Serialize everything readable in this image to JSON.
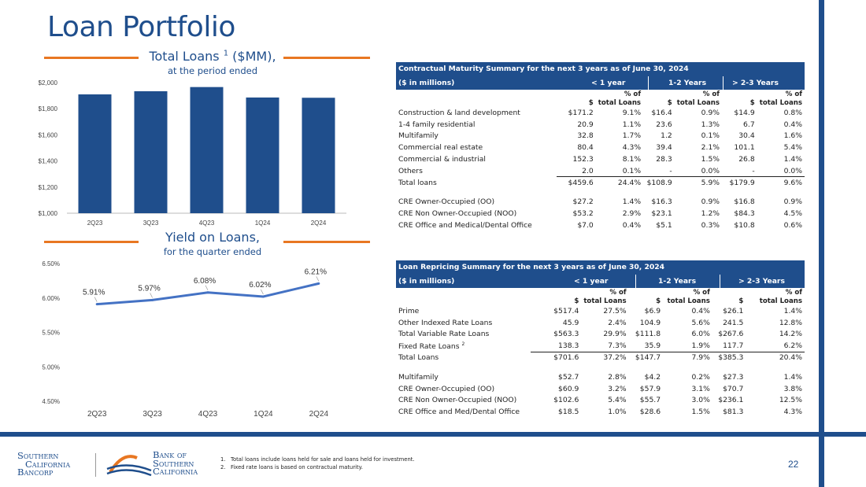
{
  "page": {
    "title": "Loan Portfolio",
    "page_number": "22",
    "footnotes": [
      "1.   Total loans include loans held for sale and loans held for investment.",
      "2.   Fixed rate loans is based on contractual maturity."
    ],
    "logos": {
      "left": [
        "Southern",
        "California",
        "Bancorp"
      ],
      "right": [
        "Bank of",
        "Southern",
        "California"
      ]
    },
    "colors": {
      "brand": "#1f4e8c",
      "accent": "#e87722",
      "bar": "#1f4e8c",
      "line": "#4472c4"
    }
  },
  "chart_data": [
    {
      "type": "bar",
      "title": "Total Loans",
      "title_superscript": "1",
      "title_suffix": "($MM),",
      "subtitle": "at the period ended",
      "categories": [
        "2Q23",
        "3Q23",
        "4Q23",
        "1Q24",
        "2Q24"
      ],
      "values": [
        1910,
        1934,
        1966,
        1886,
        1884
      ],
      "ylim": [
        1000,
        2000
      ],
      "yticks": [
        "$1,000",
        "$1,200",
        "$1,400",
        "$1,600",
        "$1,800",
        "$2,000"
      ],
      "ytick_values": [
        1000,
        1200,
        1400,
        1600,
        1800,
        2000
      ],
      "grid": false
    },
    {
      "type": "line",
      "title": "Yield on Loans,",
      "subtitle": "for the quarter ended",
      "categories": [
        "2Q23",
        "3Q23",
        "4Q23",
        "1Q24",
        "2Q24"
      ],
      "values": [
        5.91,
        5.97,
        6.08,
        6.02,
        6.21
      ],
      "data_labels": [
        "5.91%",
        "5.97%",
        "6.08%",
        "6.02%",
        "6.21%"
      ],
      "ylim": [
        4.5,
        6.5
      ],
      "yticks": [
        "4.50%",
        "5.00%",
        "5.50%",
        "6.00%",
        "6.50%"
      ],
      "ytick_values": [
        4.5,
        5.0,
        5.5,
        6.0,
        6.5
      ],
      "grid": false
    },
    {
      "type": "table",
      "title": "Contractual Maturity Summary for the next 3 years as of June 30, 2024",
      "unit_label": "($ in millions)",
      "groups": [
        "< 1 year",
        "1-2 Years",
        "> 2-3 Years"
      ],
      "subheaders": [
        "$",
        "% of total Loans"
      ],
      "rows": [
        {
          "label": "Construction & land development",
          "cells": [
            "$171.2",
            "9.1%",
            "$16.4",
            "0.9%",
            "$14.9",
            "0.8%"
          ]
        },
        {
          "label": "1-4 family residential",
          "cells": [
            "20.9",
            "1.1%",
            "23.6",
            "1.3%",
            "6.7",
            "0.4%"
          ]
        },
        {
          "label": "Multifamily",
          "cells": [
            "32.8",
            "1.7%",
            "1.2",
            "0.1%",
            "30.4",
            "1.6%"
          ]
        },
        {
          "label": "Commercial real estate",
          "cells": [
            "80.4",
            "4.3%",
            "39.4",
            "2.1%",
            "101.1",
            "5.4%"
          ]
        },
        {
          "label": "Commercial & industrial",
          "cells": [
            "152.3",
            "8.1%",
            "28.3",
            "1.5%",
            "26.8",
            "1.4%"
          ]
        },
        {
          "label": "Others",
          "cells": [
            "2.0",
            "0.1%",
            "-",
            "0.0%",
            "-",
            "0.0%"
          ]
        },
        {
          "label": "Total loans",
          "cells": [
            "$459.6",
            "24.4%",
            "$108.9",
            "5.9%",
            "$179.9",
            "9.6%"
          ]
        },
        {
          "label": "CRE Owner-Occupied (OO)",
          "cells": [
            "$27.2",
            "1.4%",
            "$16.3",
            "0.9%",
            "$16.8",
            "0.9%"
          ]
        },
        {
          "label": "CRE Non Owner-Occupied (NOO)",
          "cells": [
            "$53.2",
            "2.9%",
            "$23.1",
            "1.2%",
            "$84.3",
            "4.5%"
          ]
        },
        {
          "label": "CRE Office and Medical/Dental Office",
          "cells": [
            "$7.0",
            "0.4%",
            "$5.1",
            "0.3%",
            "$10.8",
            "0.6%"
          ]
        }
      ]
    },
    {
      "type": "table",
      "title": "Loan Repricing Summary for the next 3 years as of June 30, 2024",
      "unit_label": "($ in millions)",
      "groups": [
        "< 1 year",
        "1-2 Years",
        "> 2-3 Years"
      ],
      "subheaders": [
        "$",
        "% of total Loans"
      ],
      "rows": [
        {
          "label": "Prime",
          "cells": [
            "$517.4",
            "27.5%",
            "$6.9",
            "0.4%",
            "$26.1",
            "1.4%"
          ]
        },
        {
          "label": "Other Indexed Rate Loans",
          "cells": [
            "45.9",
            "2.4%",
            "104.9",
            "5.6%",
            "241.5",
            "12.8%"
          ]
        },
        {
          "label": "Total Variable Rate Loans",
          "cells": [
            "$563.3",
            "29.9%",
            "$111.8",
            "6.0%",
            "$267.6",
            "14.2%"
          ]
        },
        {
          "label": "Fixed Rate Loans",
          "label_superscript": "2",
          "cells": [
            "138.3",
            "7.3%",
            "35.9",
            "1.9%",
            "117.7",
            "6.2%"
          ]
        },
        {
          "label": "Total Loans",
          "cells": [
            "$701.6",
            "37.2%",
            "$147.7",
            "7.9%",
            "$385.3",
            "20.4%"
          ]
        },
        {
          "label": "Multifamily",
          "cells": [
            "$52.7",
            "2.8%",
            "$4.2",
            "0.2%",
            "$27.3",
            "1.4%"
          ]
        },
        {
          "label": "CRE Owner-Occupied (OO)",
          "cells": [
            "$60.9",
            "3.2%",
            "$57.9",
            "3.1%",
            "$70.7",
            "3.8%"
          ]
        },
        {
          "label": "CRE Non Owner-Occupied (NOO)",
          "cells": [
            "$102.6",
            "5.4%",
            "$55.7",
            "3.0%",
            "$236.1",
            "12.5%"
          ]
        },
        {
          "label": "CRE Office and Med/Dental Office",
          "cells": [
            "$18.5",
            "1.0%",
            "$28.6",
            "1.5%",
            "$81.3",
            "4.3%"
          ]
        }
      ]
    }
  ]
}
